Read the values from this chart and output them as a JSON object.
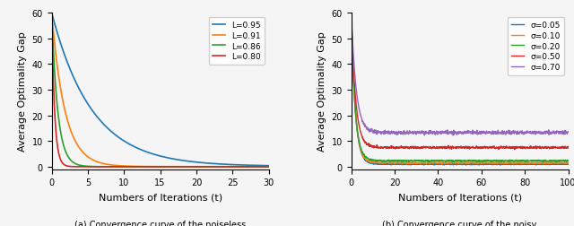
{
  "left_plot": {
    "xlabel": "Numbers of Iterations (t)",
    "ylabel": "Average Optimality Gap",
    "xlim": [
      0,
      30
    ],
    "ylim": [
      -1,
      60
    ],
    "yticks": [
      0,
      10,
      20,
      30,
      40,
      50,
      60
    ],
    "xticks": [
      0,
      5,
      10,
      15,
      20,
      25,
      30
    ],
    "series": [
      {
        "label": "L=0.95",
        "color": "#1f77b4",
        "decay": 0.18,
        "y0": 60.0,
        "converge": 0.15
      },
      {
        "label": "L=0.91",
        "color": "#ff7f0e",
        "decay": 0.55,
        "y0": 60.0,
        "converge": 0.05
      },
      {
        "label": "L=0.86",
        "color": "#2ca02c",
        "decay": 1.2,
        "y0": 60.0,
        "converge": 0.02
      },
      {
        "label": "L=0.80",
        "color": "#d62728",
        "decay": 2.5,
        "y0": 60.0,
        "converge": 0.01
      }
    ],
    "n_points": 500
  },
  "right_plot": {
    "xlabel": "Numbers of Iterations (t)",
    "ylabel": "Average Optimality Gap",
    "xlim": [
      0,
      100
    ],
    "ylim": [
      -1,
      60
    ],
    "yticks": [
      0,
      10,
      20,
      30,
      40,
      50,
      60
    ],
    "xticks": [
      0,
      20,
      40,
      60,
      80,
      100
    ],
    "series": [
      {
        "label": "σ=0.05",
        "color": "#1f77b4",
        "decay": 0.55,
        "y0": 60.0,
        "converge": 1.0,
        "noise_std": 0.12
      },
      {
        "label": "σ=0.10",
        "color": "#ff7f0e",
        "decay": 0.55,
        "y0": 60.0,
        "converge": 1.5,
        "noise_std": 0.14
      },
      {
        "label": "σ=0.20",
        "color": "#2ca02c",
        "decay": 0.55,
        "y0": 60.0,
        "converge": 2.3,
        "noise_std": 0.16
      },
      {
        "label": "σ=0.50",
        "color": "#d62728",
        "decay": 0.5,
        "y0": 60.0,
        "converge": 7.5,
        "noise_std": 0.22
      },
      {
        "label": "σ=0.70",
        "color": "#9467bd",
        "decay": 0.45,
        "y0": 61.0,
        "converge": 13.3,
        "noise_std": 0.35
      }
    ],
    "n_points": 1000
  },
  "bg_color": "#f5f5f5",
  "caption_left": "(a) Convergence curve of the noiseless",
  "caption_right": "(b) Convergence curve of the noisy"
}
